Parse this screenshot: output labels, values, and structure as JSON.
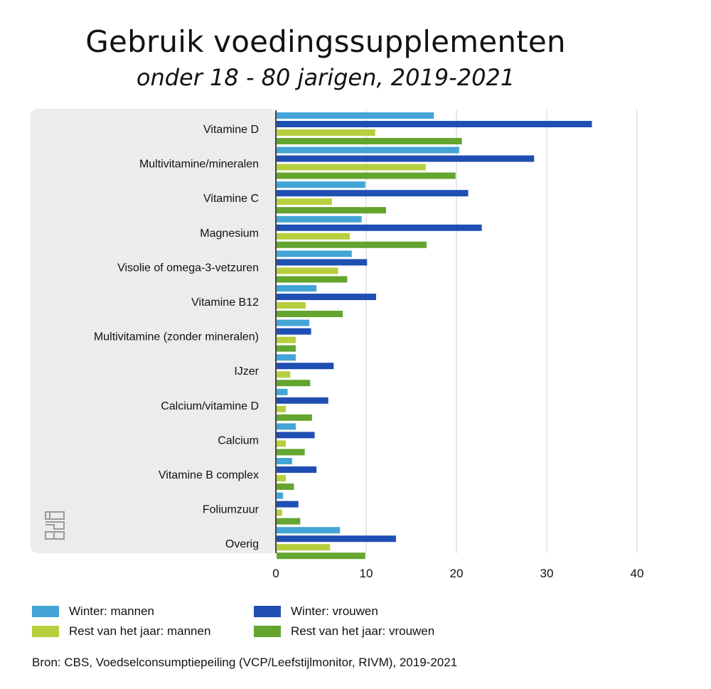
{
  "title": "Gebruik voedingssupplementen",
  "subtitle": "onder 18 - 80 jarigen, 2019-2021",
  "source": "Bron: CBS, Voedselconsumptiepeiling (VCP/Leefstijlmonitor, RIVM), 2019-2021",
  "logo_text": "cbs",
  "colors": {
    "panel": "#ececec",
    "grid": "#cfcfcf",
    "axis": "#444444"
  },
  "chart_data": {
    "type": "bar",
    "orientation": "horizontal",
    "categories": [
      "Vitamine D",
      "Multivitamine/mineralen",
      "Vitamine C",
      "Magnesium",
      "Visolie of omega-3-vetzuren",
      "Vitamine B12",
      "Multivitamine (zonder mineralen)",
      "IJzer",
      "Calcium/vitamine D",
      "Calcium",
      "Vitamine B complex",
      "Foliumzuur",
      "Overig"
    ],
    "series": [
      {
        "name": "Winter: mannen",
        "color": "#42a5d5",
        "values": [
          17.5,
          20.3,
          9.9,
          9.5,
          8.4,
          4.5,
          3.7,
          2.2,
          1.3,
          2.2,
          1.8,
          0.8,
          7.1
        ]
      },
      {
        "name": "Winter: vrouwen",
        "color": "#1f4fb3",
        "values": [
          35.0,
          28.6,
          21.3,
          22.8,
          10.1,
          11.1,
          3.9,
          6.4,
          5.8,
          4.3,
          4.5,
          2.5,
          13.3
        ]
      },
      {
        "name": "Rest van het jaar: mannen",
        "color": "#b6cf3c",
        "values": [
          11.0,
          16.6,
          6.2,
          8.2,
          6.9,
          3.3,
          2.2,
          1.6,
          1.1,
          1.1,
          1.1,
          0.7,
          6.0
        ]
      },
      {
        "name": "Rest van het jaar: vrouwen",
        "color": "#63a52f",
        "values": [
          20.6,
          19.9,
          12.2,
          16.7,
          7.9,
          7.4,
          2.2,
          3.8,
          4.0,
          3.2,
          2.0,
          2.7,
          9.9
        ]
      }
    ],
    "xlim": [
      0,
      40
    ],
    "xticks": [
      "0",
      "10",
      "20",
      "30",
      "40"
    ],
    "grid": true,
    "legend_position": "bottom"
  }
}
